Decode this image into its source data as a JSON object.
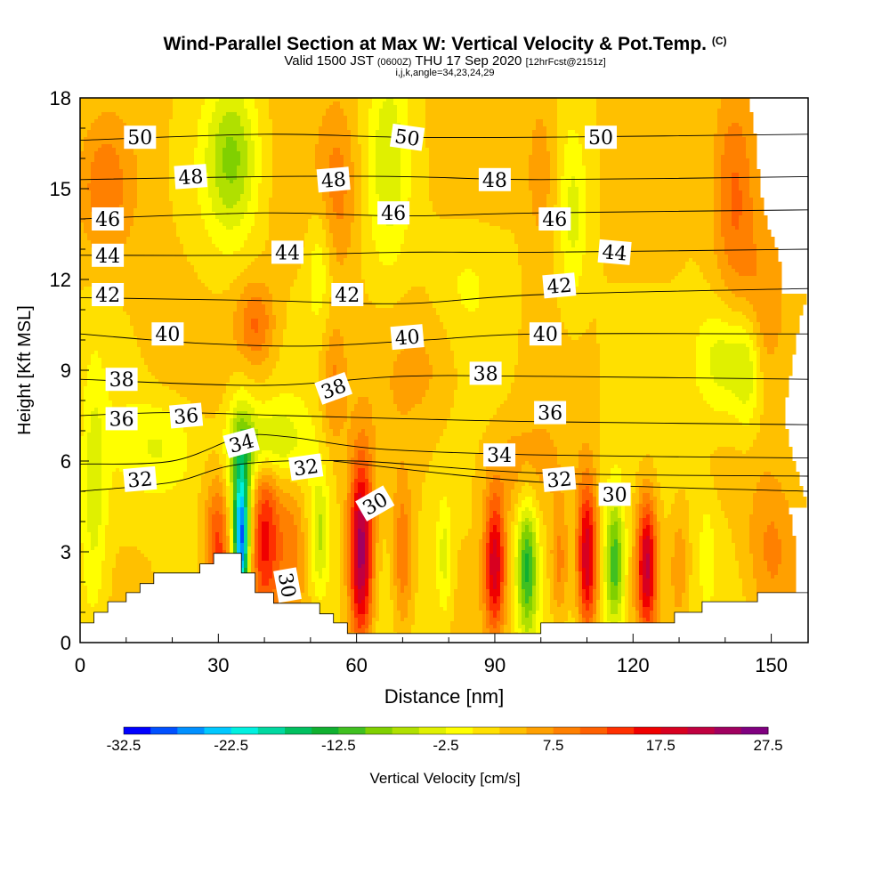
{
  "header": {
    "title": "Wind-Parallel Section at Max W: Vertical Velocity & Pot.Temp.",
    "copyright": "(C)",
    "valid_prefix": "Valid 1500 JST",
    "valid_utc": "(0600Z)",
    "valid_date": "THU 17 Sep 2020",
    "forecast": "[12hrFcst@2151z]",
    "indices": "i,j,k,angle=34,23,24,29"
  },
  "chart_data": {
    "type": "heatmap",
    "xlabel": "Distance [nm]",
    "ylabel": "Height [Kft MSL]",
    "xlim": [
      0,
      158
    ],
    "ylim": [
      0,
      18
    ],
    "x_ticks": [
      0,
      30,
      60,
      90,
      120,
      150
    ],
    "y_ticks": [
      0,
      3,
      6,
      9,
      12,
      15,
      18
    ],
    "colorbar": {
      "label": "Vertical Velocity [cm/s]",
      "min": -32.5,
      "max": 27.5,
      "step": 2.5,
      "tick_labels": [
        "-32.5",
        "-22.5",
        "-12.5",
        "-2.5",
        "7.5",
        "17.5",
        "27.5"
      ],
      "colors": [
        "#0000ff",
        "#0050ff",
        "#0090ff",
        "#00c8ff",
        "#00f0e0",
        "#00d8a0",
        "#00c060",
        "#10b030",
        "#40c020",
        "#80d000",
        "#b0e000",
        "#e0f000",
        "#ffff00",
        "#ffe000",
        "#ffc000",
        "#ffa000",
        "#ff8000",
        "#ff6000",
        "#ff3000",
        "#f00000",
        "#d80020",
        "#c00040",
        "#a00060",
        "#800080"
      ]
    },
    "terrain": [
      [
        0,
        0.65
      ],
      [
        3,
        0.65
      ],
      [
        3,
        1.0
      ],
      [
        6,
        1.0
      ],
      [
        6,
        1.35
      ],
      [
        10,
        1.35
      ],
      [
        10,
        1.65
      ],
      [
        13,
        1.65
      ],
      [
        13,
        1.95
      ],
      [
        16,
        1.95
      ],
      [
        16,
        2.3
      ],
      [
        26,
        2.3
      ],
      [
        26,
        2.6
      ],
      [
        29,
        2.6
      ],
      [
        29,
        2.95
      ],
      [
        35,
        2.95
      ],
      [
        35,
        2.3
      ],
      [
        38,
        2.3
      ],
      [
        38,
        1.65
      ],
      [
        42,
        1.65
      ],
      [
        42,
        1.3
      ],
      [
        52,
        1.3
      ],
      [
        52,
        0.95
      ],
      [
        55,
        0.95
      ],
      [
        55,
        0.65
      ],
      [
        58,
        0.65
      ],
      [
        58,
        0.3
      ],
      [
        100,
        0.3
      ],
      [
        100,
        0.65
      ],
      [
        129,
        0.65
      ],
      [
        129,
        1.0
      ],
      [
        135,
        1.0
      ],
      [
        135,
        1.35
      ],
      [
        147,
        1.35
      ],
      [
        147,
        1.65
      ],
      [
        158,
        1.65
      ],
      [
        158,
        1.3
      ]
    ],
    "vertical_velocity_features": [
      {
        "x": 35,
        "y": 3.2,
        "sx": 1.1,
        "sy": 1.6,
        "w": -24
      },
      {
        "x": 35,
        "y": 5.0,
        "sx": 2.0,
        "sy": 2.0,
        "w": -12
      },
      {
        "x": 30,
        "y": 3.0,
        "sx": 2.0,
        "sy": 1.6,
        "w": 12
      },
      {
        "x": 40,
        "y": 3.5,
        "sx": 2.5,
        "sy": 2.0,
        "w": 14
      },
      {
        "x": 46,
        "y": 3.2,
        "sx": 2.0,
        "sy": 1.6,
        "w": 6
      },
      {
        "x": 52,
        "y": 3.5,
        "sx": 1.5,
        "sy": 1.5,
        "w": -8
      },
      {
        "x": 61,
        "y": 3.0,
        "sx": 1.8,
        "sy": 2.2,
        "w": 22
      },
      {
        "x": 70,
        "y": 2.8,
        "sx": 1.5,
        "sy": 1.8,
        "w": 8
      },
      {
        "x": 79,
        "y": 2.8,
        "sx": 1.2,
        "sy": 1.4,
        "w": -6
      },
      {
        "x": 90,
        "y": 2.6,
        "sx": 1.6,
        "sy": 1.6,
        "w": 17
      },
      {
        "x": 97,
        "y": 2.5,
        "sx": 1.6,
        "sy": 1.6,
        "w": -15
      },
      {
        "x": 104,
        "y": 2.5,
        "sx": 1.4,
        "sy": 1.4,
        "w": 7
      },
      {
        "x": 110,
        "y": 2.8,
        "sx": 1.5,
        "sy": 1.8,
        "w": 18
      },
      {
        "x": 116,
        "y": 2.6,
        "sx": 1.5,
        "sy": 1.6,
        "w": -14
      },
      {
        "x": 123,
        "y": 2.6,
        "sx": 1.5,
        "sy": 1.6,
        "w": 18
      },
      {
        "x": 130,
        "y": 2.5,
        "sx": 1.2,
        "sy": 1.2,
        "w": 5
      },
      {
        "x": 136,
        "y": 3.0,
        "sx": 1.2,
        "sy": 1.2,
        "w": -4
      },
      {
        "x": 40,
        "y": 6.6,
        "sx": 5.5,
        "sy": 0.9,
        "w": -9
      },
      {
        "x": 18,
        "y": 6.5,
        "sx": 6.0,
        "sy": 1.2,
        "w": -5
      },
      {
        "x": 3,
        "y": 5.0,
        "sx": 2.0,
        "sy": 3.0,
        "w": -6
      },
      {
        "x": 38,
        "y": 10.5,
        "sx": 3.0,
        "sy": 1.0,
        "w": 8
      },
      {
        "x": 55,
        "y": 8.5,
        "sx": 2.0,
        "sy": 1.5,
        "w": 6
      },
      {
        "x": 33,
        "y": 16.0,
        "sx": 4.0,
        "sy": 1.8,
        "w": -10
      },
      {
        "x": 67,
        "y": 16.0,
        "sx": 3.0,
        "sy": 2.5,
        "w": -6
      },
      {
        "x": 56,
        "y": 15.0,
        "sx": 3.0,
        "sy": 2.0,
        "w": 6
      },
      {
        "x": 52,
        "y": 12.5,
        "sx": 2.0,
        "sy": 1.5,
        "w": -5
      },
      {
        "x": 100,
        "y": 15.5,
        "sx": 2.5,
        "sy": 2.0,
        "w": 5
      },
      {
        "x": 107,
        "y": 14.0,
        "sx": 2.0,
        "sy": 2.0,
        "w": -5
      },
      {
        "x": 142,
        "y": 15.0,
        "sx": 3.5,
        "sy": 2.5,
        "w": 9
      },
      {
        "x": 148,
        "y": 11.0,
        "sx": 4.0,
        "sy": 2.0,
        "w": 5
      },
      {
        "x": 140,
        "y": 9.3,
        "sx": 4.5,
        "sy": 1.4,
        "w": -8
      },
      {
        "x": 145,
        "y": 9.0,
        "sx": 2.0,
        "sy": 1.5,
        "w": -6
      },
      {
        "x": 5,
        "y": 15.0,
        "sx": 4.0,
        "sy": 1.5,
        "w": 6
      },
      {
        "x": 75,
        "y": 9.0,
        "sx": 6.0,
        "sy": 1.5,
        "w": 3
      },
      {
        "x": 95,
        "y": 5.8,
        "sx": 6.0,
        "sy": 1.2,
        "w": 4
      },
      {
        "x": 150,
        "y": 3.0,
        "sx": 4.0,
        "sy": 2.0,
        "w": 6
      },
      {
        "x": 84,
        "y": 12.0,
        "sx": 5.0,
        "sy": 1.5,
        "w": -3
      },
      {
        "x": 18,
        "y": 10.0,
        "sx": 5.0,
        "sy": 2.0,
        "w": 2
      }
    ],
    "potential_temperature_contours": [
      {
        "value": 30,
        "points": [
          [
            55,
            6.0
          ],
          [
            100,
            5.3
          ],
          [
            158,
            5.0
          ]
        ]
      },
      {
        "value": 32,
        "points": [
          [
            0,
            5.0
          ],
          [
            20,
            5.3
          ],
          [
            35,
            5.9
          ],
          [
            60,
            6.0
          ],
          [
            100,
            5.6
          ],
          [
            158,
            5.5
          ]
        ]
      },
      {
        "value": 34,
        "points": [
          [
            0,
            5.9
          ],
          [
            20,
            6.0
          ],
          [
            35,
            6.8
          ],
          [
            45,
            6.8
          ],
          [
            65,
            6.4
          ],
          [
            100,
            6.2
          ],
          [
            158,
            6.1
          ]
        ]
      },
      {
        "value": 36,
        "points": [
          [
            0,
            7.5
          ],
          [
            20,
            7.6
          ],
          [
            45,
            7.5
          ],
          [
            70,
            7.4
          ],
          [
            100,
            7.3
          ],
          [
            158,
            7.2
          ]
        ]
      },
      {
        "value": 38,
        "points": [
          [
            0,
            8.7
          ],
          [
            40,
            8.5
          ],
          [
            70,
            8.8
          ],
          [
            100,
            8.8
          ],
          [
            158,
            8.7
          ]
        ]
      },
      {
        "value": 40,
        "points": [
          [
            0,
            10.2
          ],
          [
            25,
            9.9
          ],
          [
            50,
            9.8
          ],
          [
            75,
            10.0
          ],
          [
            100,
            10.2
          ],
          [
            158,
            10.2
          ]
        ]
      },
      {
        "value": 42,
        "points": [
          [
            0,
            11.4
          ],
          [
            40,
            11.3
          ],
          [
            70,
            11.2
          ],
          [
            100,
            11.5
          ],
          [
            158,
            11.7
          ]
        ]
      },
      {
        "value": 44,
        "points": [
          [
            0,
            12.8
          ],
          [
            40,
            12.8
          ],
          [
            70,
            12.9
          ],
          [
            100,
            12.9
          ],
          [
            158,
            13.0
          ]
        ]
      },
      {
        "value": 46,
        "points": [
          [
            0,
            14.0
          ],
          [
            40,
            14.2
          ],
          [
            70,
            14.1
          ],
          [
            100,
            14.2
          ],
          [
            158,
            14.3
          ]
        ]
      },
      {
        "value": 48,
        "points": [
          [
            0,
            15.3
          ],
          [
            40,
            15.4
          ],
          [
            70,
            15.4
          ],
          [
            100,
            15.3
          ],
          [
            158,
            15.4
          ]
        ]
      },
      {
        "value": 50,
        "points": [
          [
            0,
            16.6
          ],
          [
            40,
            16.8
          ],
          [
            70,
            16.7
          ],
          [
            100,
            16.7
          ],
          [
            158,
            16.8
          ]
        ]
      }
    ],
    "contour_labels": [
      {
        "text": "50",
        "x": 13,
        "y": 16.7,
        "angle": 0
      },
      {
        "text": "50",
        "x": 71,
        "y": 16.7,
        "angle": 8
      },
      {
        "text": "50",
        "x": 113,
        "y": 16.7,
        "angle": 0
      },
      {
        "text": "48",
        "x": 24,
        "y": 15.4,
        "angle": -4
      },
      {
        "text": "48",
        "x": 55,
        "y": 15.3,
        "angle": -5
      },
      {
        "text": "48",
        "x": 90,
        "y": 15.3,
        "angle": 0
      },
      {
        "text": "46",
        "x": 6,
        "y": 14.0,
        "angle": 0
      },
      {
        "text": "46",
        "x": 68,
        "y": 14.2,
        "angle": 0
      },
      {
        "text": "46",
        "x": 103,
        "y": 14.0,
        "angle": 0
      },
      {
        "text": "44",
        "x": 6,
        "y": 12.8,
        "angle": 0
      },
      {
        "text": "44",
        "x": 45,
        "y": 12.9,
        "angle": 0
      },
      {
        "text": "44",
        "x": 116,
        "y": 12.9,
        "angle": 5
      },
      {
        "text": "42",
        "x": 6,
        "y": 11.5,
        "angle": 0
      },
      {
        "text": "42",
        "x": 58,
        "y": 11.5,
        "angle": 0
      },
      {
        "text": "42",
        "x": 104,
        "y": 11.8,
        "angle": -5
      },
      {
        "text": "40",
        "x": 19,
        "y": 10.2,
        "angle": 0
      },
      {
        "text": "40",
        "x": 71,
        "y": 10.1,
        "angle": -5
      },
      {
        "text": "40",
        "x": 101,
        "y": 10.2,
        "angle": 0
      },
      {
        "text": "38",
        "x": 9,
        "y": 8.7,
        "angle": 0
      },
      {
        "text": "38",
        "x": 55,
        "y": 8.4,
        "angle": -20
      },
      {
        "text": "38",
        "x": 88,
        "y": 8.9,
        "angle": 0
      },
      {
        "text": "36",
        "x": 9,
        "y": 7.4,
        "angle": 0
      },
      {
        "text": "36",
        "x": 23,
        "y": 7.5,
        "angle": -5
      },
      {
        "text": "36",
        "x": 102,
        "y": 7.6,
        "angle": 0
      },
      {
        "text": "34",
        "x": 35,
        "y": 6.6,
        "angle": -15
      },
      {
        "text": "34",
        "x": 91,
        "y": 6.2,
        "angle": 0
      },
      {
        "text": "32",
        "x": 13,
        "y": 5.4,
        "angle": -5
      },
      {
        "text": "32",
        "x": 49,
        "y": 5.8,
        "angle": -8
      },
      {
        "text": "32",
        "x": 104,
        "y": 5.4,
        "angle": -5
      },
      {
        "text": "30",
        "x": 64,
        "y": 4.6,
        "angle": -30
      },
      {
        "text": "30",
        "x": 116,
        "y": 4.9,
        "angle": 0
      },
      {
        "text": "30",
        "x": 45,
        "y": 1.9,
        "angle": 80
      }
    ]
  }
}
